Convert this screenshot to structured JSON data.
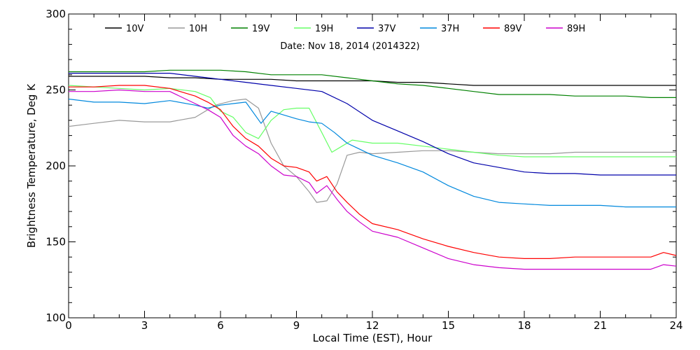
{
  "chart_data": {
    "type": "line",
    "title": "",
    "annotation": "Date: Nov 18, 2014 (2014322)",
    "xlabel": "Local Time (EST), Hour",
    "ylabel": "Brightness Temperature, Deg K",
    "xlim": [
      0,
      24
    ],
    "ylim": [
      100,
      300
    ],
    "xticks": [
      0,
      3,
      6,
      9,
      12,
      15,
      18,
      21,
      24
    ],
    "yticks": [
      100,
      150,
      200,
      250,
      300
    ],
    "grid": false,
    "legend_position": "top",
    "series": [
      {
        "name": "10V",
        "color": "#000000",
        "x": [
          0,
          1,
          2,
          3,
          4,
          5,
          6,
          7,
          8,
          9,
          10,
          11,
          12,
          13,
          14,
          15,
          16,
          17,
          18,
          19,
          20,
          21,
          22,
          23,
          24
        ],
        "y": [
          259,
          259,
          259,
          259,
          258,
          258,
          257,
          257,
          257,
          256,
          256,
          256,
          256,
          255,
          255,
          254,
          253,
          253,
          253,
          253,
          253,
          253,
          253,
          253,
          253
        ]
      },
      {
        "name": "10H",
        "color": "#999999",
        "x": [
          0,
          1,
          2,
          3,
          4,
          5,
          5.8,
          6.5,
          7,
          7.5,
          8,
          8.5,
          9,
          9.5,
          9.8,
          10.2,
          10.6,
          11,
          11.5,
          12,
          13,
          14,
          15,
          16,
          17,
          18,
          19,
          20,
          21,
          22,
          23,
          24
        ],
        "y": [
          226,
          228,
          230,
          229,
          229,
          232,
          240,
          243,
          244,
          238,
          215,
          200,
          193,
          183,
          176,
          177,
          188,
          207,
          209,
          208,
          209,
          210,
          210,
          209,
          208,
          208,
          208,
          209,
          209,
          209,
          209,
          209
        ]
      },
      {
        "name": "19V",
        "color": "#008000",
        "x": [
          0,
          1,
          2,
          3,
          4,
          5,
          6,
          7,
          8,
          9,
          10,
          11,
          12,
          13,
          14,
          15,
          16,
          17,
          18,
          19,
          20,
          21,
          22,
          23,
          24
        ],
        "y": [
          262,
          262,
          262,
          262,
          263,
          263,
          263,
          262,
          260,
          260,
          260,
          258,
          256,
          254,
          253,
          251,
          249,
          247,
          247,
          247,
          246,
          246,
          246,
          245,
          245
        ]
      },
      {
        "name": "19H",
        "color": "#66ff66",
        "x": [
          0,
          1,
          2,
          3,
          4,
          5,
          5.6,
          6,
          6.5,
          7,
          7.5,
          8,
          8.5,
          9,
          9.5,
          10,
          10.4,
          10.8,
          11.2,
          12,
          13,
          14,
          15,
          16,
          17,
          18,
          19,
          20,
          21,
          22,
          23,
          24
        ],
        "y": [
          253,
          252,
          251,
          250,
          251,
          249,
          245,
          236,
          232,
          222,
          218,
          230,
          237,
          238,
          238,
          222,
          209,
          213,
          217,
          215,
          215,
          213,
          211,
          209,
          207,
          206,
          206,
          206,
          206,
          206,
          206,
          206
        ]
      },
      {
        "name": "37V",
        "color": "#0000aa",
        "x": [
          0,
          1,
          2,
          3,
          4,
          5,
          6,
          7,
          8,
          9,
          10,
          11,
          12,
          13,
          14,
          15,
          16,
          17,
          18,
          19,
          20,
          21,
          22,
          23,
          24
        ],
        "y": [
          261,
          261,
          261,
          261,
          261,
          259,
          257,
          255,
          253,
          251,
          249,
          241,
          230,
          223,
          216,
          208,
          202,
          199,
          196,
          195,
          195,
          194,
          194,
          194,
          194
        ]
      },
      {
        "name": "37H",
        "color": "#0088dd",
        "x": [
          0,
          1,
          2,
          3,
          4,
          5,
          5.5,
          6,
          6.5,
          7,
          7.6,
          8,
          8.4,
          9,
          9.5,
          10,
          10.5,
          11,
          12,
          13,
          14,
          15,
          16,
          17,
          18,
          19,
          20,
          21,
          22,
          23,
          24
        ],
        "y": [
          244,
          242,
          242,
          241,
          243,
          240,
          238,
          240,
          241,
          242,
          228,
          236,
          234,
          231,
          229,
          228,
          222,
          215,
          207,
          202,
          196,
          187,
          180,
          176,
          175,
          174,
          174,
          174,
          173,
          173,
          173
        ]
      },
      {
        "name": "89V",
        "color": "#ff0000",
        "x": [
          0,
          1,
          2,
          3,
          4,
          5,
          5.5,
          6,
          6.5,
          7,
          7.5,
          8,
          8.5,
          9,
          9.5,
          9.8,
          10.2,
          10.6,
          11,
          11.5,
          12,
          13,
          14,
          15,
          16,
          17,
          18,
          19,
          20,
          21,
          22,
          23,
          23.5,
          24
        ],
        "y": [
          252,
          252,
          253,
          253,
          251,
          246,
          242,
          237,
          226,
          218,
          213,
          205,
          200,
          199,
          196,
          190,
          193,
          183,
          176,
          168,
          162,
          158,
          152,
          147,
          143,
          140,
          139,
          139,
          140,
          140,
          140,
          140,
          143,
          141
        ]
      },
      {
        "name": "89H",
        "color": "#cc00cc",
        "x": [
          0,
          1,
          2,
          3,
          4,
          5,
          5.5,
          6,
          6.5,
          7,
          7.5,
          8,
          8.5,
          9,
          9.5,
          9.8,
          10.2,
          10.6,
          11,
          11.5,
          12,
          13,
          14,
          15,
          16,
          17,
          18,
          19,
          20,
          21,
          22,
          23,
          23.5,
          24
        ],
        "y": [
          249,
          249,
          250,
          249,
          249,
          241,
          237,
          232,
          220,
          213,
          208,
          200,
          194,
          193,
          189,
          182,
          187,
          178,
          170,
          163,
          157,
          153,
          146,
          139,
          135,
          133,
          132,
          132,
          132,
          132,
          132,
          132,
          135,
          134
        ]
      }
    ]
  }
}
